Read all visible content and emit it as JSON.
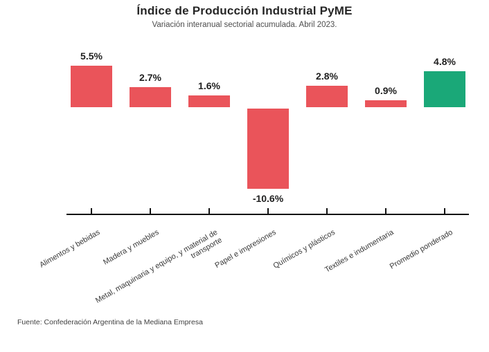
{
  "header": {
    "title": "Índice de Producción Industrial PyME",
    "subtitle": "Variación interanual sectorial acumulada. Abril 2023."
  },
  "footer": {
    "source": "Fuente: Confederación Argentina de la Mediana Empresa"
  },
  "colors": {
    "sector_bar_red": "#ea545a",
    "weighted_avg_bar_green": "#1aa878",
    "axis": "#111111",
    "title_text": "#262626",
    "subtitle_text": "#4d4d4d",
    "value_label_text": "#1f1f1f",
    "tick_label_text": "#3a3a3a",
    "source_text": "#3f3f3f"
  },
  "chart_data": {
    "type": "bar",
    "title": "Índice de Producción Industrial PyME",
    "subtitle": "Variación interanual sectorial acumulada. Abril 2023.",
    "categories": [
      "Alimentos y bebidas",
      "Madera y muebles",
      "Metal, maquinaria y equipo, y material de\ntransporte",
      "Papel e impresiones",
      "Químicos y plásticos",
      "Textiles e indumentaria",
      "Promedio ponderado"
    ],
    "values": [
      5.5,
      2.7,
      1.6,
      -10.6,
      2.8,
      0.9,
      4.8
    ],
    "value_labels": [
      "5.5%",
      "2.7%",
      "1.6%",
      "-10.6%",
      "2.8%",
      "0.9%",
      "4.8%"
    ],
    "bar_colors": [
      "#ea545a",
      "#ea545a",
      "#ea545a",
      "#ea545a",
      "#ea545a",
      "#ea545a",
      "#1aa878"
    ],
    "xlabel": "",
    "ylabel": "",
    "ylim": [
      -11,
      6
    ],
    "grid": false,
    "legend": "none",
    "x_tick_label_rotation_deg": 30
  }
}
